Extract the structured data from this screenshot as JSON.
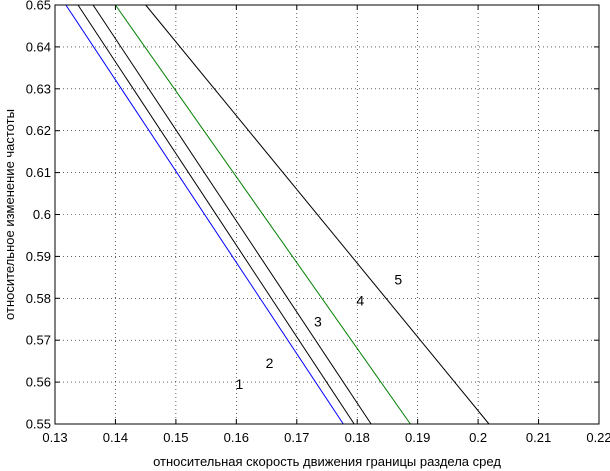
{
  "chart_data": {
    "type": "line",
    "title": "",
    "xlabel": "относительная скорость движения границы раздела сред",
    "ylabel": "относительное изменение частоты",
    "xlim": [
      0.13,
      0.22
    ],
    "ylim": [
      0.55,
      0.65
    ],
    "grid": true,
    "x_ticks": [
      0.13,
      0.14,
      0.15,
      0.16,
      0.17,
      0.18,
      0.19,
      0.2,
      0.21,
      0.22
    ],
    "y_ticks": [
      0.55,
      0.56,
      0.57,
      0.58,
      0.59,
      0.6,
      0.61,
      0.62,
      0.63,
      0.64,
      0.65
    ],
    "x_tick_labels": [
      "0.13",
      "0.14",
      "0.15",
      "0.16",
      "0.17",
      "0.18",
      "0.19",
      "0.2",
      "0.21",
      "0.22"
    ],
    "y_tick_labels": [
      "0.55",
      "0.56",
      "0.57",
      "0.58",
      "0.59",
      "0.6",
      "0.61",
      "0.62",
      "0.63",
      "0.64",
      "0.65"
    ],
    "series": [
      {
        "label": "1",
        "color": "#0000ff",
        "x": [
          0.1318,
          0.1777
        ],
        "y": [
          0.65,
          0.55
        ],
        "label_at": [
          0.1605,
          0.5595
        ]
      },
      {
        "label": "2",
        "color": "#000000",
        "x": [
          0.1338,
          0.1795
        ],
        "y": [
          0.65,
          0.55
        ],
        "label_at": [
          0.1655,
          0.5645
        ]
      },
      {
        "label": "3",
        "color": "#000000",
        "x": [
          0.1363,
          0.1823
        ],
        "y": [
          0.65,
          0.55
        ],
        "label_at": [
          0.1735,
          0.5745
        ]
      },
      {
        "label": "4",
        "color": "#008000",
        "x": [
          0.14,
          0.1888
        ],
        "y": [
          0.65,
          0.55
        ],
        "label_at": [
          0.1805,
          0.5795
        ]
      },
      {
        "label": "5",
        "color": "#000000",
        "x": [
          0.145,
          0.2018
        ],
        "y": [
          0.65,
          0.55
        ],
        "label_at": [
          0.1868,
          0.5845
        ]
      }
    ]
  }
}
